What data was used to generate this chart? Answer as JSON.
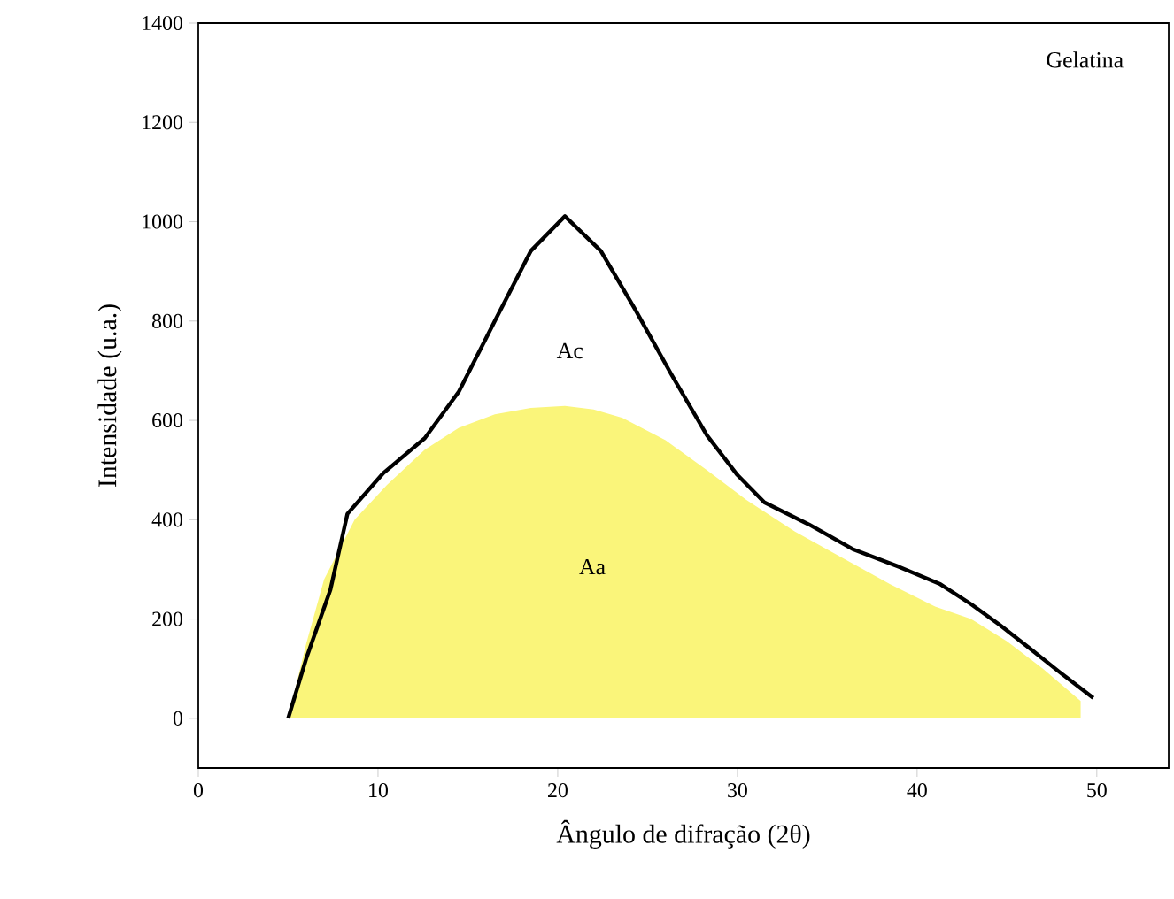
{
  "chart_data": {
    "type": "line",
    "xlabel": "Ângulo de difração (2θ)",
    "ylabel": "Intensidade (u.a.)",
    "xlim": [
      0,
      54
    ],
    "ylim": [
      -100,
      1400
    ],
    "xticks": [
      0,
      10,
      20,
      30,
      40,
      50
    ],
    "yticks": [
      0,
      200,
      400,
      600,
      800,
      1000,
      1200,
      1400
    ],
    "grid": false,
    "marker": "none",
    "series": [
      {
        "type": "area",
        "color": "#faf57a",
        "x": [
          5,
          6,
          7,
          8.7,
          10.5,
          12.6,
          14.5,
          16.5,
          18.5,
          20.4,
          22,
          23.6,
          26,
          28.3,
          30.5,
          33.2,
          36,
          38.5,
          41,
          43,
          45,
          47,
          49.1
        ],
        "values": [
          0,
          150,
          280,
          400,
          470,
          541,
          585,
          612,
          625,
          629,
          622,
          605,
          560,
          500,
          440,
          376,
          320,
          270,
          225,
          200,
          155,
          100,
          35
        ]
      },
      {
        "color": "#000000",
        "x": [
          5,
          6,
          7.35,
          8.3,
          10.3,
          12.6,
          14.5,
          16.5,
          18.5,
          20.4,
          22.4,
          24.3,
          26.3,
          28.3,
          30,
          31.5,
          34,
          36.4,
          39,
          41.3,
          43,
          44.6,
          46.3,
          47.9,
          49.8
        ],
        "values": [
          0,
          120,
          259,
          412,
          494,
          564,
          658,
          800,
          941,
          1011,
          941,
          824,
          694,
          570,
          490,
          435,
          390,
          341,
          305,
          270,
          230,
          188,
          140,
          94,
          41
        ]
      }
    ],
    "annotations": [
      "Gelatina",
      "Ac",
      "Aa"
    ]
  }
}
